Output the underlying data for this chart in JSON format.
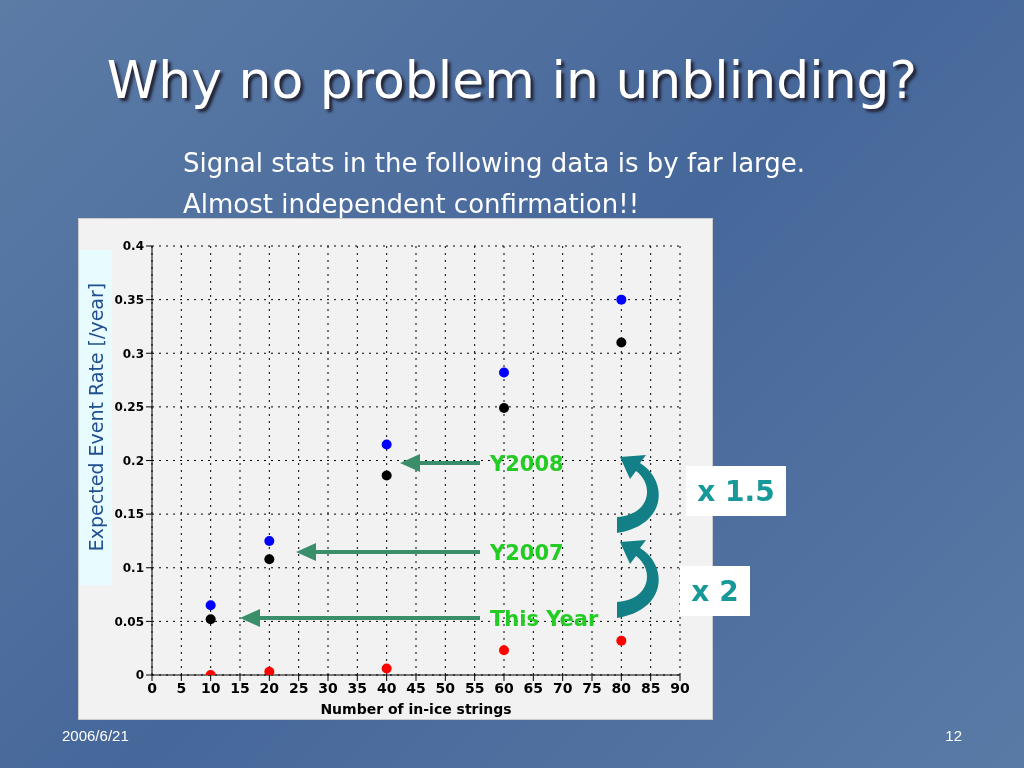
{
  "chart_data": {
    "type": "scatter",
    "title": "Why no problem in unblinding?",
    "subtitle": "Signal stats in the following data is by far large.\nAlmost independent confirmation!!",
    "xlabel": "Number of in-ice strings",
    "ylabel": "Expected Event Rate [/year]",
    "x": [
      10,
      20,
      40,
      60,
      80
    ],
    "series": [
      {
        "color": "#0000ff",
        "values": [
          0.065,
          0.125,
          0.215,
          0.282,
          0.35
        ]
      },
      {
        "color": "#000000",
        "values": [
          0.052,
          0.108,
          0.186,
          0.249,
          0.31
        ]
      },
      {
        "color": "#ff0000",
        "values": [
          0,
          0.003,
          0.006,
          0.023,
          0.032
        ]
      }
    ],
    "xlim": [
      0,
      90
    ],
    "xticks": [
      0,
      5,
      10,
      15,
      20,
      25,
      30,
      35,
      40,
      45,
      50,
      55,
      60,
      65,
      70,
      75,
      80,
      85,
      90
    ],
    "ylim": [
      0,
      0.4
    ],
    "yticks": [
      0,
      0.05,
      0.1,
      0.15,
      0.2,
      0.25,
      0.3,
      0.35,
      0.4
    ],
    "grid": true,
    "marker": "circle",
    "annotations": [
      "Y2008",
      "Y2007",
      "This Year",
      "x 1.5",
      "x 2",
      "2006/6/21",
      "12"
    ]
  }
}
